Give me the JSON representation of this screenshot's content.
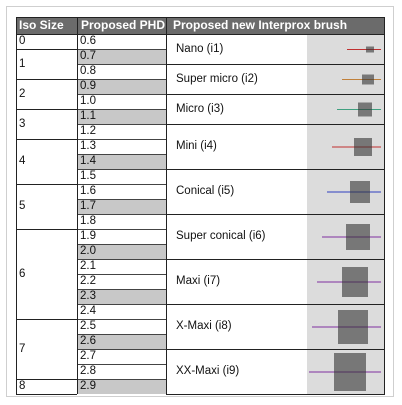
{
  "table": {
    "headers": {
      "iso": "Iso Size",
      "phd": "Proposed PHD",
      "brush": "Proposed new Interprox brush"
    },
    "iso_sizes": [
      "0",
      "1",
      "2",
      "3",
      "4",
      "5",
      "6",
      "7",
      "8"
    ],
    "phd_values": [
      "0.6",
      "0.7",
      "0.8",
      "0.9",
      "1.0",
      "1.1",
      "1.2",
      "1.3",
      "1.4",
      "1.5",
      "1.6",
      "1.7",
      "1.8",
      "1.9",
      "2.0",
      "2.1",
      "2.2",
      "2.3",
      "2.4",
      "2.5",
      "2.6",
      "2.7",
      "2.8",
      "2.9"
    ],
    "brushes": [
      "Nano (i1)",
      "Super micro (i2)",
      "Micro (i3)",
      "Mini (i4)",
      "Conical (i5)",
      "Super conical (i6)",
      "Maxi (i7)",
      "X-Maxi (i8)",
      "XX-Maxi (i9)"
    ]
  },
  "colors": {
    "header_bg": "#6b6b6b",
    "shaded_cell": "#c8c8c8",
    "wire_colors": [
      "#c03030",
      "#c0803a",
      "#40a080",
      "#c03030",
      "#3040c0",
      "#8030a0",
      "#8030a0",
      "#8030a0",
      "#8030a0"
    ]
  }
}
